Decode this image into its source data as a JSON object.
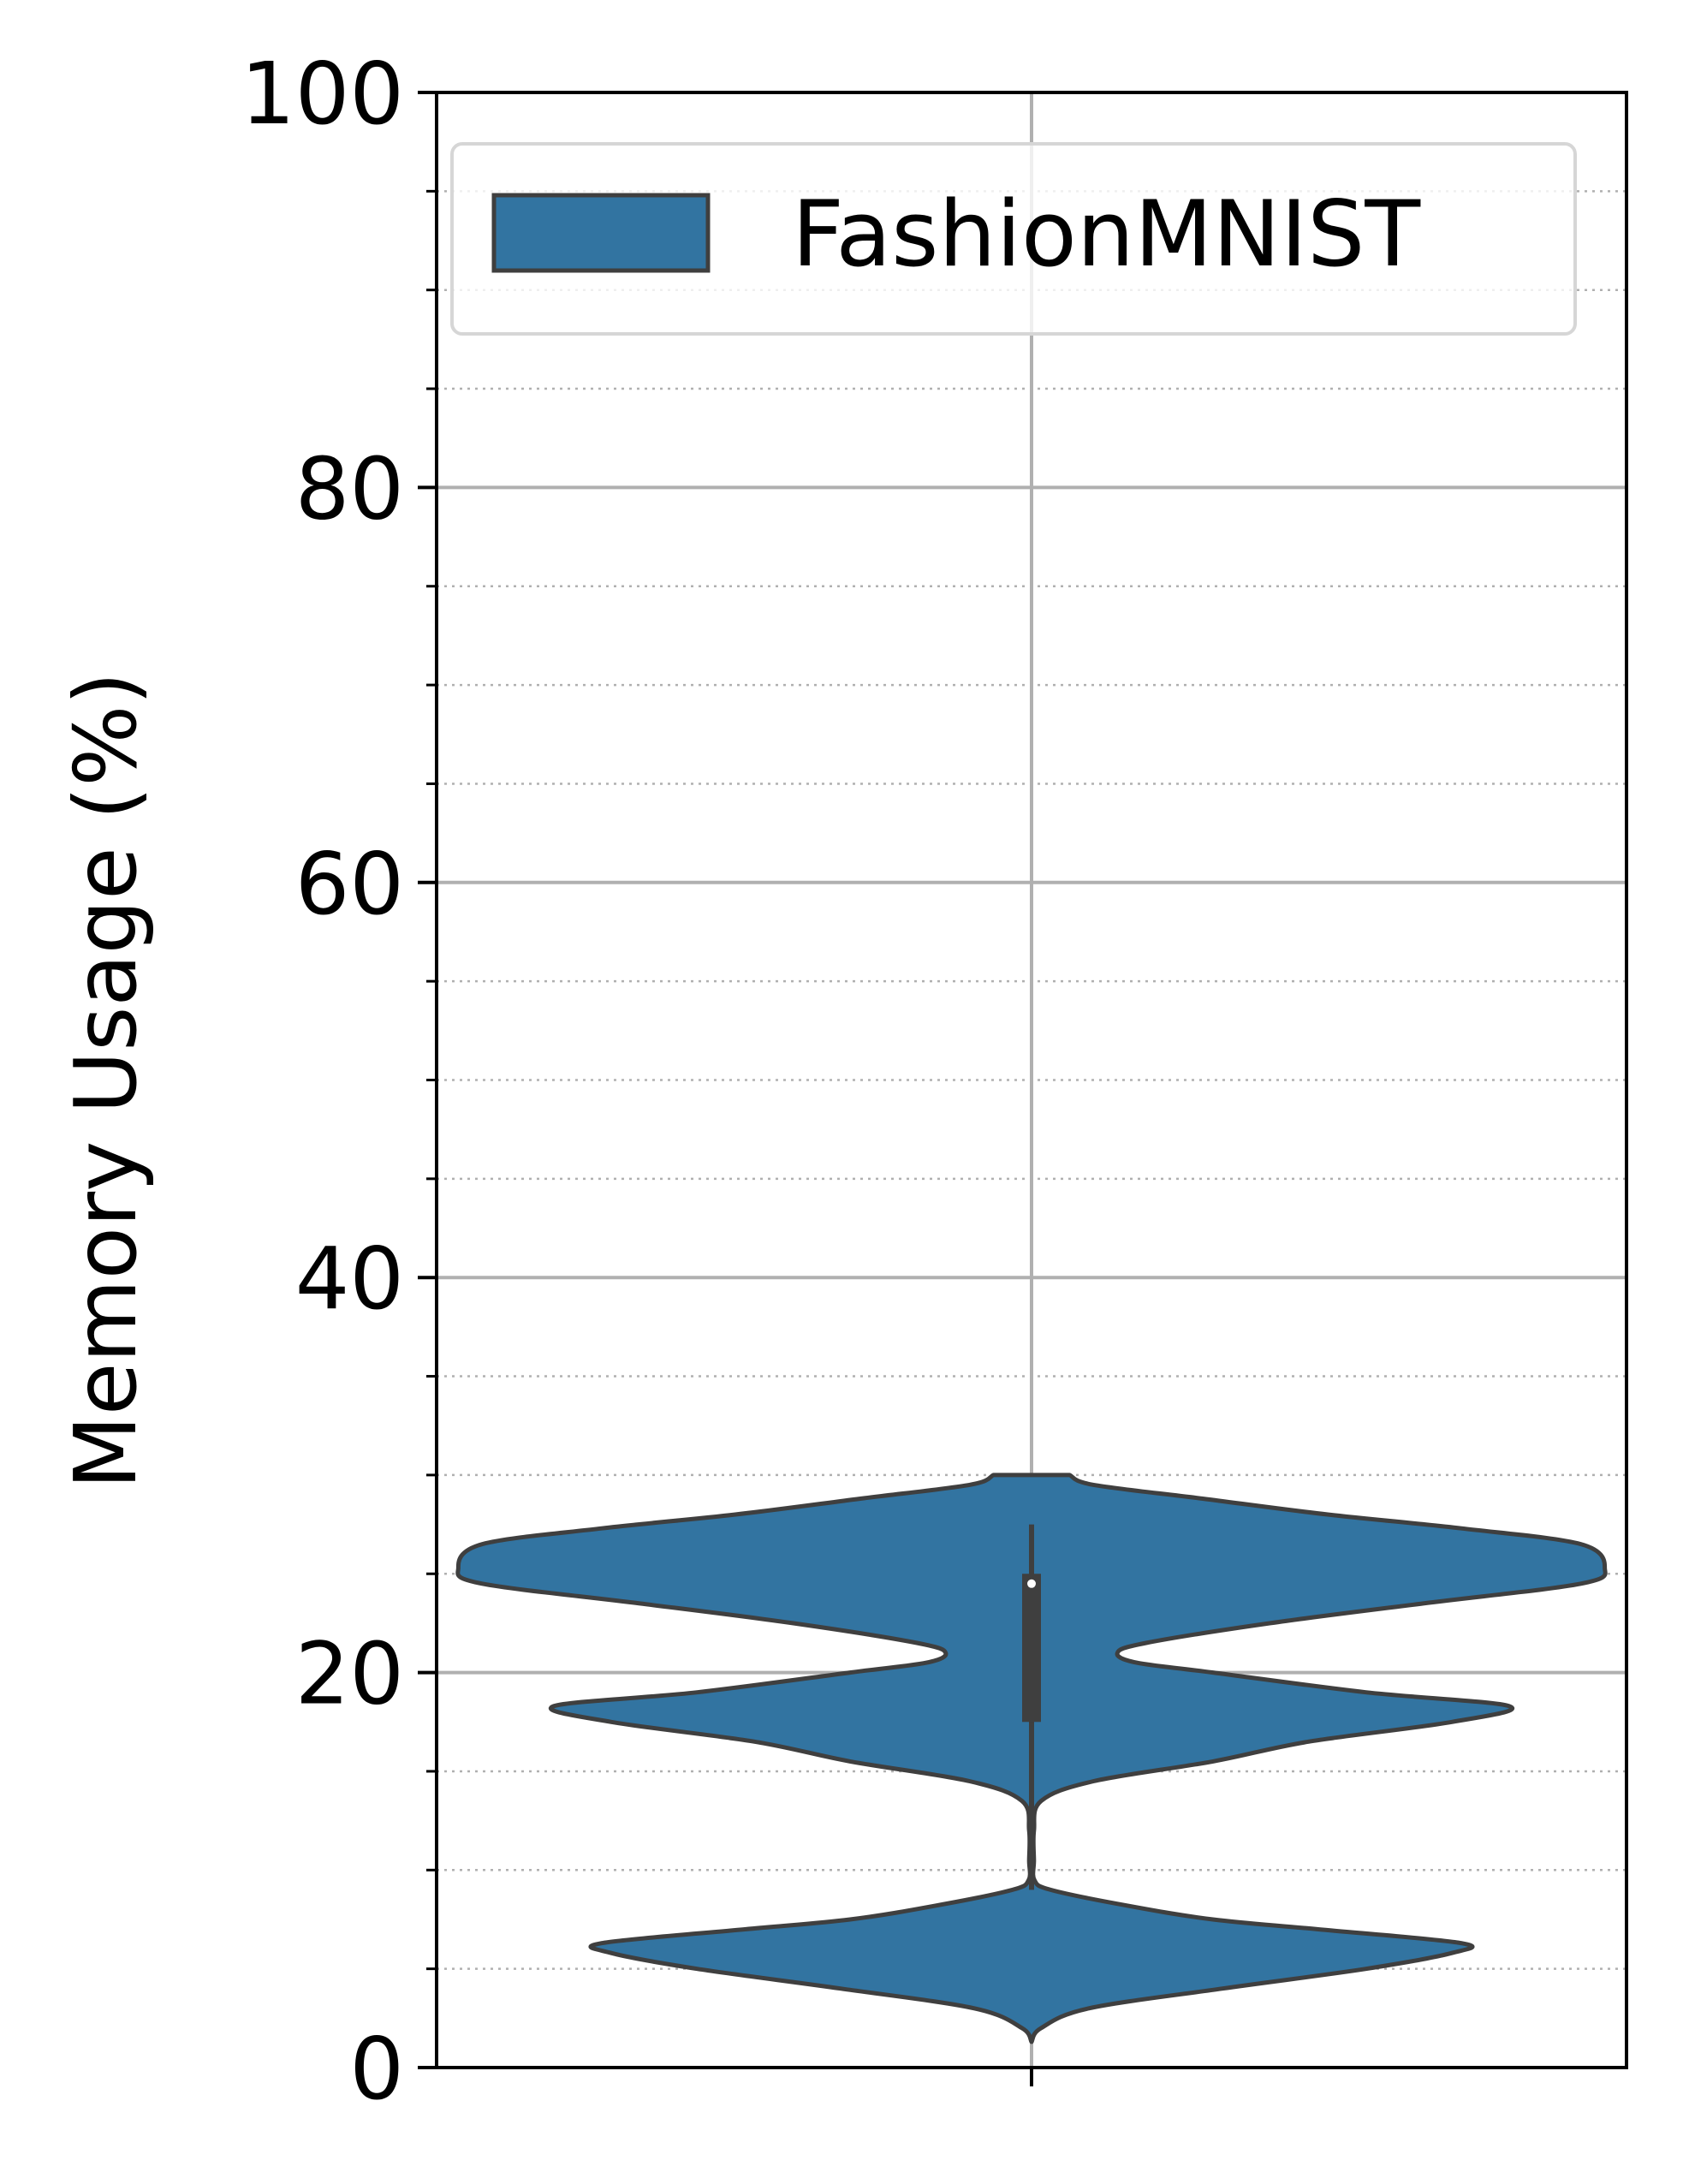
{
  "chart_data": {
    "type": "violin",
    "title": "",
    "xlabel": "",
    "ylabel": "Memory Usage (%)",
    "ylim": [
      0,
      100
    ],
    "yticks": [
      0,
      20,
      40,
      60,
      80,
      100
    ],
    "yminor_step": 5,
    "grid": {
      "major": true,
      "minor": "dotted",
      "x": true
    },
    "legend": {
      "position": "top-right",
      "entries": [
        "FashionMNIST"
      ]
    },
    "series": [
      {
        "name": "FashionMNIST",
        "color": "#3274a1",
        "edge_color": "#3f3f3f",
        "density_profile": [
          [
            1.3,
            0.0
          ],
          [
            2.0,
            0.02
          ],
          [
            3.0,
            0.12
          ],
          [
            4.0,
            0.4
          ],
          [
            5.0,
            0.7
          ],
          [
            5.8,
            0.88
          ],
          [
            6.3,
            0.9
          ],
          [
            7.0,
            0.6
          ],
          [
            7.5,
            0.38
          ],
          [
            8.2,
            0.2
          ],
          [
            9.0,
            0.04
          ],
          [
            9.5,
            0.006
          ],
          [
            10.5,
            0.005
          ],
          [
            12.0,
            0.005
          ],
          [
            13.5,
            0.02
          ],
          [
            14.5,
            0.13
          ],
          [
            15.5,
            0.38
          ],
          [
            16.5,
            0.58
          ],
          [
            17.5,
            0.88
          ],
          [
            18.3,
            1.0
          ],
          [
            19.0,
            0.7
          ],
          [
            20.0,
            0.38
          ],
          [
            20.5,
            0.22
          ],
          [
            21.0,
            0.18
          ],
          [
            21.5,
            0.24
          ],
          [
            22.5,
            0.5
          ],
          [
            23.5,
            0.82
          ],
          [
            24.5,
            1.15
          ],
          [
            25.3,
            1.2
          ],
          [
            26.5,
            1.15
          ],
          [
            27.3,
            0.9
          ],
          [
            28.0,
            0.62
          ],
          [
            28.8,
            0.36
          ],
          [
            29.5,
            0.13
          ],
          [
            30.0,
            0.08
          ]
        ],
        "box": {
          "q1": 17.5,
          "median": 24.5,
          "q3": 25.0,
          "whisker_low": 9.0,
          "whisker_high": 27.5
        }
      }
    ]
  }
}
